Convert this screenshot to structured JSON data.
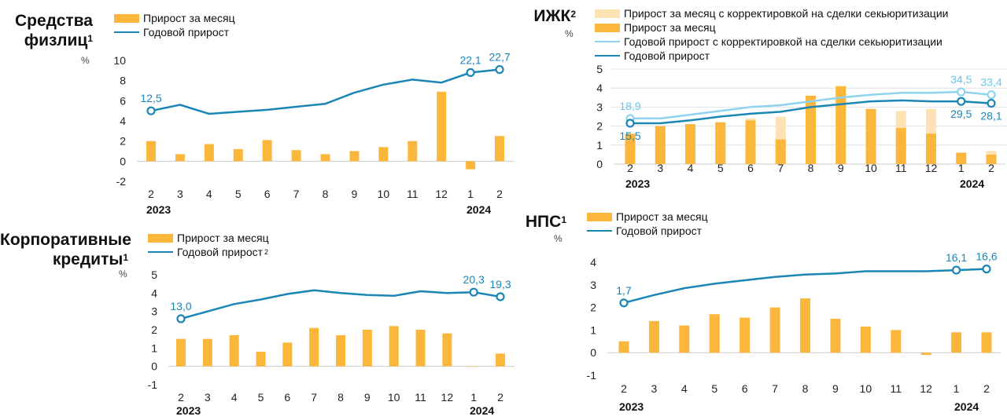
{
  "colors": {
    "bar": "#fbb73c",
    "bar_light": "#fde3b3",
    "line": "#1a86b6",
    "line_light": "#8fd3f0",
    "label_dark": "#1a86b6",
    "label_light": "#6cc6ea",
    "zero": "#cccccc",
    "grid": "#e2e2e2"
  },
  "panels": {
    "deposits": {
      "title_line1": "Средства",
      "title_line2": "физлиц",
      "title_sup": "1",
      "unit": "%",
      "legend_bar": "Прирост за месяц",
      "legend_line": "Годовой прирост",
      "year_start": "2023",
      "year_end": "2024"
    },
    "mortgage": {
      "title": "ИЖК",
      "title_sup": "2",
      "unit": "%",
      "legend_bar_adj": "Прирост за месяц с корректировкой на сделки секьюритизации",
      "legend_bar": "Прирост за месяц",
      "legend_line_adj": "Годовой прирост с корректировкой на сделки секьюритизации",
      "legend_line": "Годовой прирост",
      "year_start": "2023",
      "year_end": "2024"
    },
    "corporate": {
      "title_line1": "Корпоративные",
      "title_line2": "кредиты",
      "title_sup": "1",
      "unit": "%",
      "legend_bar": "Прирост за месяц",
      "legend_line": "Годовой прирост",
      "legend_line_sup": "2",
      "year_start": "2023",
      "year_end": "2024"
    },
    "nps": {
      "title": "НПС",
      "title_sup": "1",
      "unit": "%",
      "legend_bar": "Прирост за месяц",
      "legend_line": "Годовой прирост",
      "year_start": "2023",
      "year_end": "2024"
    }
  },
  "chart_data": [
    {
      "id": "deposits",
      "type": "bar",
      "categories": [
        "2",
        "3",
        "4",
        "5",
        "6",
        "7",
        "8",
        "9",
        "10",
        "11",
        "12",
        "1",
        "2"
      ],
      "y_ticks": [
        10,
        8,
        6,
        4,
        2,
        0,
        -2
      ],
      "ylim": [
        -2,
        10
      ],
      "grid": false,
      "series": [
        {
          "name": "Прирост за месяц",
          "kind": "bar",
          "values": [
            2.0,
            0.7,
            1.7,
            1.2,
            2.1,
            1.1,
            0.7,
            1.0,
            1.4,
            2.0,
            6.9,
            -0.8,
            2.5
          ]
        },
        {
          "name": "Годовой прирост",
          "kind": "line",
          "values": [
            5.0,
            5.6,
            4.7,
            4.9,
            5.1,
            5.4,
            5.7,
            6.8,
            7.6,
            8.1,
            7.8,
            8.8,
            9.1
          ],
          "labels": [
            {
              "index": 0,
              "text": "12,5",
              "pos": "above"
            },
            {
              "index": 11,
              "text": "22,1",
              "pos": "above"
            },
            {
              "index": 12,
              "text": "22,7",
              "pos": "above"
            }
          ]
        }
      ]
    },
    {
      "id": "mortgage",
      "type": "bar",
      "categories": [
        "2",
        "3",
        "4",
        "5",
        "6",
        "7",
        "8",
        "9",
        "10",
        "11",
        "12",
        "1",
        "2"
      ],
      "y_ticks": [
        5,
        4,
        3,
        2,
        1,
        0
      ],
      "ylim": [
        0,
        5
      ],
      "grid": true,
      "series": [
        {
          "name": "Прирост за месяц с корректировкой на сделки секьюритизации",
          "kind": "bar_bg",
          "values": [
            1.6,
            2.0,
            2.1,
            2.2,
            2.4,
            2.5,
            3.6,
            4.1,
            2.9,
            2.8,
            2.9,
            0.6,
            0.7
          ]
        },
        {
          "name": "Прирост за месяц",
          "kind": "bar",
          "values": [
            1.6,
            2.0,
            2.1,
            2.2,
            2.3,
            1.3,
            3.6,
            4.1,
            2.9,
            1.9,
            1.6,
            0.6,
            0.5
          ]
        },
        {
          "name": "Годовой прирост с корректировкой на сделки секьюритизации",
          "kind": "line_light",
          "values": [
            2.4,
            2.4,
            2.6,
            2.8,
            3.0,
            3.1,
            3.3,
            3.5,
            3.65,
            3.75,
            3.75,
            3.8,
            3.65
          ],
          "labels": [
            {
              "index": 0,
              "text": "18,9",
              "pos": "above"
            },
            {
              "index": 11,
              "text": "34,5",
              "pos": "above"
            },
            {
              "index": 12,
              "text": "33,4",
              "pos": "above"
            }
          ]
        },
        {
          "name": "Годовой прирост",
          "kind": "line",
          "values": [
            2.15,
            2.15,
            2.3,
            2.5,
            2.65,
            2.75,
            3.0,
            3.15,
            3.3,
            3.35,
            3.3,
            3.3,
            3.2
          ],
          "labels": [
            {
              "index": 0,
              "text": "15,5",
              "pos": "below"
            },
            {
              "index": 11,
              "text": "29,5",
              "pos": "below"
            },
            {
              "index": 12,
              "text": "28,1",
              "pos": "below"
            }
          ]
        }
      ]
    },
    {
      "id": "corporate",
      "type": "bar",
      "categories": [
        "2",
        "3",
        "4",
        "5",
        "6",
        "7",
        "8",
        "9",
        "10",
        "11",
        "12",
        "1",
        "2"
      ],
      "y_ticks": [
        5,
        4,
        3,
        2,
        1,
        0,
        -1
      ],
      "ylim": [
        -1,
        5
      ],
      "grid": false,
      "series": [
        {
          "name": "Прирост за месяц",
          "kind": "bar",
          "values": [
            1.5,
            1.5,
            1.7,
            0.8,
            1.3,
            2.1,
            1.7,
            2.0,
            2.2,
            2.0,
            1.8,
            0.0,
            0.7
          ]
        },
        {
          "name": "Годовой прирост",
          "kind": "line",
          "values": [
            2.6,
            3.0,
            3.4,
            3.65,
            3.95,
            4.15,
            4.0,
            3.9,
            3.85,
            4.1,
            4.0,
            4.05,
            3.8
          ],
          "labels": [
            {
              "index": 0,
              "text": "13,0",
              "pos": "above"
            },
            {
              "index": 11,
              "text": "20,3",
              "pos": "above"
            },
            {
              "index": 12,
              "text": "19,3",
              "pos": "above"
            }
          ]
        }
      ]
    },
    {
      "id": "nps",
      "type": "bar",
      "categories": [
        "2",
        "3",
        "4",
        "5",
        "6",
        "7",
        "8",
        "9",
        "10",
        "11",
        "12",
        "1",
        "2"
      ],
      "y_ticks": [
        4,
        3,
        2,
        1,
        0,
        -1
      ],
      "ylim": [
        -1,
        4
      ],
      "grid": false,
      "series": [
        {
          "name": "Прирост за месяц",
          "kind": "bar",
          "values": [
            0.5,
            1.4,
            1.2,
            1.7,
            1.55,
            2.0,
            2.4,
            1.5,
            1.15,
            1.0,
            -0.1,
            0.9,
            0.9
          ]
        },
        {
          "name": "Годовой прирост",
          "kind": "line",
          "values": [
            2.2,
            2.55,
            2.85,
            3.05,
            3.2,
            3.35,
            3.45,
            3.5,
            3.6,
            3.6,
            3.6,
            3.65,
            3.7
          ],
          "labels": [
            {
              "index": 0,
              "text": "1,7",
              "pos": "above"
            },
            {
              "index": 11,
              "text": "16,1",
              "pos": "above"
            },
            {
              "index": 12,
              "text": "16,6",
              "pos": "above"
            }
          ]
        }
      ]
    }
  ]
}
